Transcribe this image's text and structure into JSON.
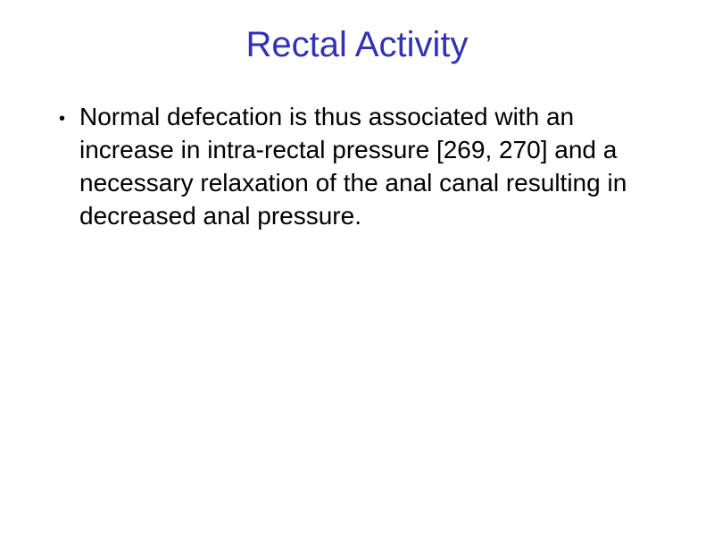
{
  "slide": {
    "title": "Rectal Activity",
    "title_color": "#3232b4",
    "title_fontsize": 40,
    "background_color": "#ffffff",
    "bullets": [
      {
        "text": "Normal defecation is thus associated with an increase in intra-rectal pressure [269, 270] and a necessary relaxation of the anal canal resulting in decreased anal pressure."
      }
    ],
    "body_color": "#000000",
    "body_fontsize": 28
  }
}
